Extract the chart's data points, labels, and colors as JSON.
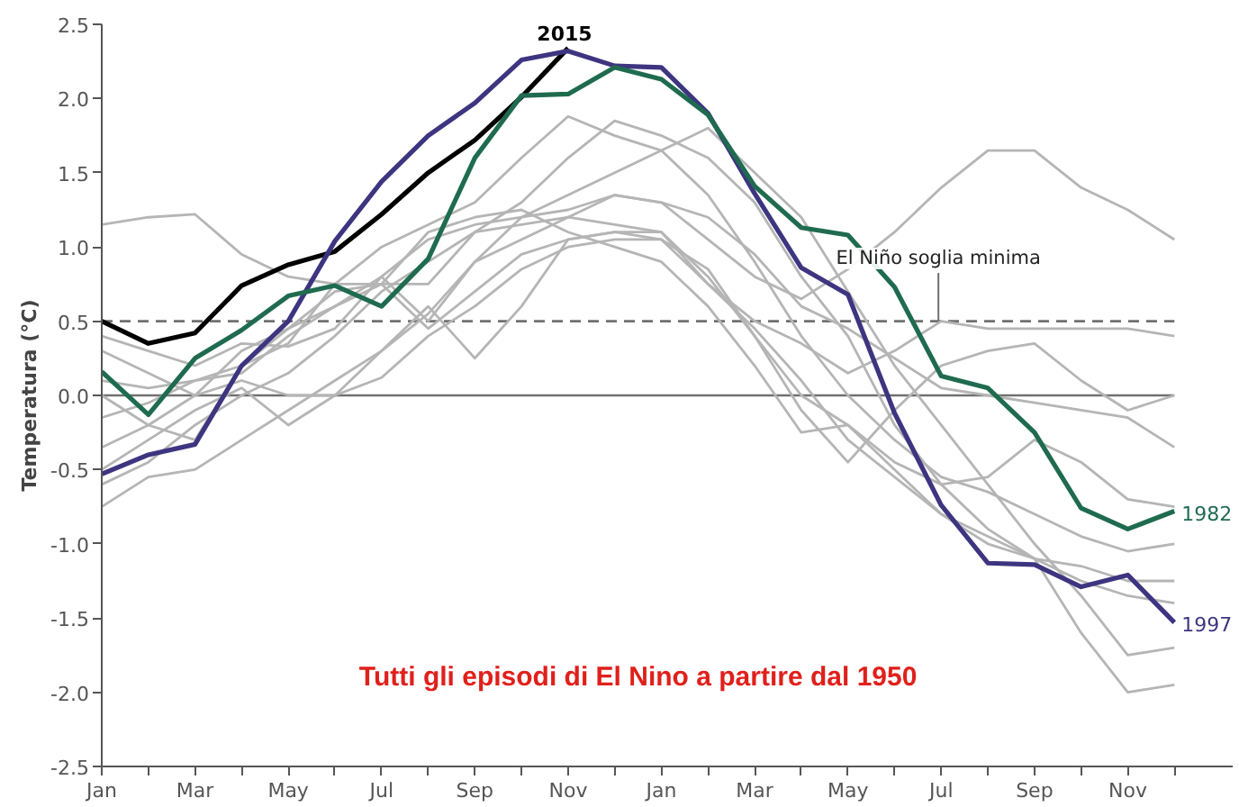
{
  "chart_data": {
    "type": "line",
    "ylabel": "Temperatura (°C)",
    "annotations": [
      "Tutti gli episodi di El Nino a partire dal 1950"
    ],
    "categories": [
      "Jan",
      null,
      "Mar",
      null,
      "May",
      null,
      "Jul",
      null,
      "Sep",
      null,
      "Nov",
      null,
      "Jan",
      null,
      "Mar",
      null,
      "May",
      null,
      "Jul",
      null,
      "Sep",
      null,
      "Nov",
      null
    ],
    "ylim": [
      -2.5,
      2.5
    ],
    "yticks": [
      {
        "value": -2.5,
        "label": "-2.5"
      },
      {
        "value": -2.0,
        "label": "-2.0"
      },
      {
        "value": -1.5,
        "label": "-1.5"
      },
      {
        "value": -1.0,
        "label": "-1.0"
      },
      {
        "value": -0.5,
        "label": "-0.5"
      },
      {
        "value": 0,
        "label": "0.0"
      },
      {
        "value": 0.5,
        "label": "0.5"
      },
      {
        "value": 1.0,
        "label": "1.0"
      },
      {
        "value": 1.5,
        "label": "1.5"
      },
      {
        "value": 2.0,
        "label": "2.0"
      },
      {
        "value": 2.5,
        "label": "2.5"
      }
    ],
    "grid": false,
    "marker": "none",
    "line_style": "solid",
    "ref_lines": [
      {
        "axis": "y",
        "value": 0.5,
        "label": "El Niño soglia minima",
        "color": "#707070",
        "line_style": "dashed"
      },
      {
        "axis": "y",
        "value": 0,
        "label": null,
        "color": "#707070",
        "line_style": "solid"
      }
    ],
    "series": [
      {
        "color": "#b5b5b5",
        "values": [
          1.15,
          1.2,
          1.22,
          0.95,
          0.8,
          0.75,
          0.75,
          0.45,
          0.7,
          0.95,
          1.05,
          1.1,
          1.05,
          0.85,
          0.4,
          0.0,
          -0.2,
          -0.5,
          -0.8,
          -0.95,
          -1.1,
          -1.25,
          -1.35,
          -1.4
        ]
      },
      {
        "color": "#b5b5b5",
        "values": [
          0.4,
          0.3,
          0.2,
          0.35,
          0.33,
          0.45,
          0.8,
          1.05,
          1.15,
          1.2,
          1.25,
          1.35,
          1.3,
          1.05,
          0.8,
          0.65,
          0.85,
          1.1,
          1.4,
          1.65,
          1.65,
          1.4,
          1.25,
          1.05
        ]
      },
      {
        "color": "#b5b5b5",
        "values": [
          -0.75,
          -0.55,
          -0.5,
          -0.3,
          -0.1,
          0.1,
          0.3,
          0.55,
          0.9,
          1.2,
          1.35,
          1.5,
          1.65,
          1.8,
          1.5,
          1.2,
          0.7,
          0.2,
          -0.2,
          -0.6,
          -1.0,
          -1.35,
          -1.75,
          -1.7
        ]
      },
      {
        "color": "#b5b5b5",
        "values": [
          -0.6,
          -0.45,
          -0.2,
          0.0,
          0.15,
          0.4,
          0.7,
          0.9,
          1.1,
          1.3,
          1.6,
          1.85,
          1.75,
          1.6,
          1.3,
          0.8,
          0.4,
          -0.2,
          -0.6,
          -0.9,
          -1.1,
          -1.6,
          -2.0,
          -1.95
        ]
      },
      {
        "color": "#b5b5b5",
        "values": [
          0.1,
          0.05,
          0.1,
          0.2,
          0.35,
          0.75,
          1.0,
          1.15,
          1.3,
          1.6,
          1.88,
          1.75,
          1.65,
          1.35,
          0.9,
          0.4,
          0.0,
          -0.3,
          -0.55,
          -0.65,
          -0.8,
          -0.95,
          -1.05,
          -1.0
        ]
      },
      {
        "color": "#b5b5b5",
        "values": [
          -0.35,
          -0.2,
          0.0,
          0.1,
          0.0,
          0.0,
          0.12,
          0.4,
          0.6,
          0.85,
          1.0,
          1.05,
          1.05,
          0.75,
          0.45,
          0.1,
          -0.3,
          -0.55,
          -0.8,
          -1.0,
          -1.1,
          -1.15,
          -1.25,
          -1.25
        ]
      },
      {
        "color": "#b5b5b5",
        "values": [
          -0.15,
          -0.05,
          0.1,
          0.15,
          0.4,
          0.6,
          0.8,
          0.5,
          0.9,
          1.05,
          1.2,
          1.15,
          1.1,
          0.75,
          0.5,
          0.35,
          0.15,
          0.3,
          0.5,
          0.45,
          0.45,
          0.45,
          0.45,
          0.4
        ]
      },
      {
        "color": "#b5b5b5",
        "values": [
          0.3,
          0.15,
          0.0,
          0.3,
          0.45,
          0.7,
          0.75,
          0.75,
          1.1,
          1.15,
          1.2,
          1.35,
          1.3,
          1.2,
          0.95,
          0.6,
          0.45,
          0.25,
          0.05,
          0.0,
          -0.05,
          -0.1,
          -0.15,
          -0.35
        ]
      },
      {
        "color": "#b5b5b5",
        "values": [
          -0.5,
          -0.3,
          -0.1,
          0.05,
          -0.2,
          0.0,
          0.3,
          0.6,
          0.25,
          0.6,
          1.05,
          1.1,
          1.1,
          0.8,
          0.4,
          -0.1,
          -0.45,
          -0.1,
          0.2,
          0.3,
          0.35,
          0.1,
          -0.1,
          0.0
        ]
      },
      {
        "color": "#b5b5b5",
        "values": [
          0.0,
          -0.2,
          -0.3,
          0.2,
          0.45,
          0.6,
          0.75,
          1.1,
          1.2,
          1.25,
          1.1,
          1.0,
          0.9,
          0.6,
          0.2,
          -0.25,
          -0.2,
          -0.45,
          -0.6,
          -0.55,
          -0.3,
          -0.45,
          -0.7,
          -0.75
        ]
      },
      {
        "name": "2015",
        "color": "#000000",
        "values": [
          0.5,
          0.35,
          0.42,
          0.74,
          0.88,
          0.97,
          1.22,
          1.5,
          1.72,
          2.01,
          2.34,
          null,
          null,
          null,
          null,
          null,
          null,
          null,
          null,
          null,
          null,
          null,
          null,
          null
        ]
      },
      {
        "name": "1997",
        "color": "#3d3580",
        "values": [
          -0.53,
          -0.4,
          -0.33,
          0.2,
          0.5,
          1.04,
          1.44,
          1.75,
          1.97,
          2.26,
          2.32,
          2.22,
          2.21,
          1.9,
          1.36,
          0.86,
          0.68,
          -0.12,
          -0.74,
          -1.13,
          -1.14,
          -1.29,
          -1.21,
          -1.53
        ]
      },
      {
        "name": "1982",
        "color": "#1f6b4f",
        "values": [
          0.16,
          -0.13,
          0.25,
          0.44,
          0.67,
          0.74,
          0.6,
          0.92,
          1.6,
          2.02,
          2.03,
          2.21,
          2.13,
          1.89,
          1.41,
          1.13,
          1.08,
          0.73,
          0.13,
          0.05,
          -0.25,
          -0.76,
          -0.9,
          -0.78
        ]
      }
    ]
  }
}
